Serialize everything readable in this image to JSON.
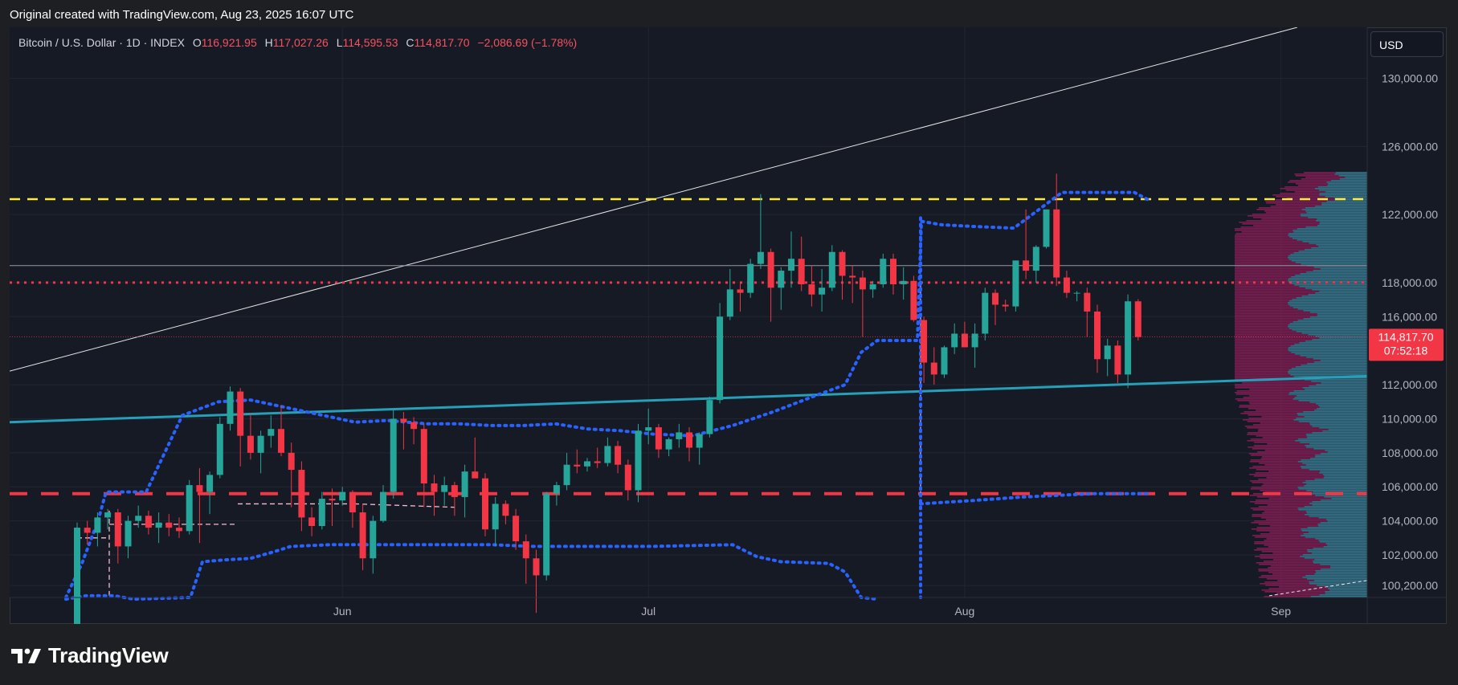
{
  "caption": "Original created with TradingView.com, Aug 23, 2025 16:07 UTC",
  "legend": {
    "symbol": "Bitcoin / U.S. Dollar · 1D · INDEX",
    "o_label": "O",
    "o_value": "116,921.95",
    "h_label": "H",
    "h_value": "117,027.26",
    "l_label": "L",
    "l_value": "114,595.53",
    "c_label": "C",
    "c_value": "114,817.70",
    "change": "−2,086.69 (−1.78%)"
  },
  "currency": "USD",
  "brand": "TradingView",
  "brand_icon": "tradingview-logo-icon",
  "colors": {
    "up": "#26a69a",
    "down": "#f23645",
    "background": "#161a25",
    "grid": "#222633",
    "trendline": "#26a0b8",
    "dotted_blue": "#2962ff",
    "yellow": "#ffeb3b",
    "red_level": "#f23645"
  },
  "price_tag": {
    "price": "114,817.70",
    "countdown": "07:52:18"
  },
  "chart_data": {
    "type": "candlestick",
    "title": "Bitcoin / U.S. Dollar · 1D · INDEX",
    "x_ticks": [
      "Jun",
      "Jul",
      "Aug",
      "Sep"
    ],
    "x_tick_dates": [
      "2025-06-01",
      "2025-07-01",
      "2025-08-01",
      "2025-09-01"
    ],
    "y_ticks": [
      "100,200.00",
      "102,000.00",
      "104,000.00",
      "106,000.00",
      "108,000.00",
      "110,000.00",
      "112,000.00",
      "116,000.00",
      "118,000.00",
      "122,000.00",
      "126,000.00",
      "130,000.00"
    ],
    "y_tick_values": [
      100200,
      102000,
      104000,
      106000,
      108000,
      110000,
      112000,
      116000,
      118000,
      122000,
      126000,
      130000
    ],
    "series": [
      {
        "name": "Bitcoin / U.S. Dollar",
        "start_date": "2025-05-06",
        "ohlc": [
          [
            94700,
            103900,
            94400,
            103600
          ],
          [
            103600,
            104000,
            102600,
            103300
          ],
          [
            103300,
            104500,
            102500,
            104200
          ],
          [
            104200,
            104700,
            103500,
            104500
          ],
          [
            104500,
            104700,
            101500,
            102500
          ],
          [
            102500,
            104300,
            101800,
            104000
          ],
          [
            104000,
            104900,
            103600,
            104300
          ],
          [
            104300,
            104600,
            103200,
            103600
          ],
          [
            103600,
            104500,
            102700,
            103900
          ],
          [
            103900,
            104400,
            103100,
            103600
          ],
          [
            103600,
            104200,
            103000,
            103400
          ],
          [
            103400,
            106400,
            103200,
            106100
          ],
          [
            106100,
            107100,
            102700,
            105700
          ],
          [
            105700,
            106900,
            104400,
            106700
          ],
          [
            106700,
            110100,
            106500,
            109700
          ],
          [
            109700,
            111900,
            109300,
            111600
          ],
          [
            111600,
            111800,
            107200,
            109000
          ],
          [
            109000,
            110300,
            107600,
            108000
          ],
          [
            108000,
            109300,
            106800,
            109000
          ],
          [
            109000,
            110200,
            108300,
            109400
          ],
          [
            109400,
            110800,
            107800,
            108000
          ],
          [
            108000,
            108600,
            104800,
            107000
          ],
          [
            107000,
            107500,
            103400,
            104200
          ],
          [
            104200,
            104800,
            103100,
            103700
          ],
          [
            103700,
            105700,
            103500,
            105300
          ],
          [
            105300,
            105900,
            103700,
            105200
          ],
          [
            105200,
            106000,
            104900,
            105700
          ],
          [
            105700,
            105800,
            103600,
            104500
          ],
          [
            104500,
            105000,
            101100,
            101800
          ],
          [
            101800,
            104300,
            100900,
            104000
          ],
          [
            104000,
            106100,
            103900,
            105700
          ],
          [
            105700,
            110500,
            105300,
            110000
          ],
          [
            110000,
            110400,
            108200,
            109800
          ],
          [
            109800,
            110100,
            108500,
            109400
          ],
          [
            109400,
            109700,
            104800,
            106200
          ],
          [
            106200,
            106700,
            104300,
            105700
          ],
          [
            105700,
            106600,
            104900,
            106100
          ],
          [
            106100,
            106300,
            104300,
            105400
          ],
          [
            105400,
            107300,
            104200,
            106900
          ],
          [
            106900,
            108900,
            106700,
            106500
          ],
          [
            106500,
            106800,
            103100,
            103500
          ],
          [
            103500,
            105400,
            102500,
            105000
          ],
          [
            105000,
            105200,
            103800,
            104300
          ],
          [
            104300,
            104700,
            102300,
            102800
          ],
          [
            102800,
            103200,
            100300,
            101800
          ],
          [
            101800,
            102300,
            98600,
            100800
          ],
          [
            100800,
            105700,
            100500,
            105600
          ],
          [
            105600,
            106300,
            104900,
            106100
          ],
          [
            106100,
            108000,
            105800,
            107300
          ],
          [
            107300,
            108200,
            106800,
            107200
          ],
          [
            107200,
            107700,
            106900,
            107500
          ],
          [
            107500,
            108300,
            107100,
            107400
          ],
          [
            107400,
            108900,
            107200,
            108400
          ],
          [
            108400,
            108700,
            106800,
            107300
          ],
          [
            107300,
            107600,
            105200,
            105800
          ],
          [
            105800,
            109700,
            105100,
            109300
          ],
          [
            109300,
            110600,
            108500,
            109500
          ],
          [
            109500,
            109700,
            107700,
            108200
          ],
          [
            108200,
            108900,
            107800,
            108800
          ],
          [
            108800,
            109700,
            108300,
            109200
          ],
          [
            109200,
            109500,
            107500,
            108300
          ],
          [
            108300,
            109200,
            107300,
            109100
          ],
          [
            109100,
            111300,
            108900,
            111100
          ],
          [
            111100,
            116800,
            110900,
            116000
          ],
          [
            116000,
            118800,
            115800,
            117600
          ],
          [
            117600,
            118000,
            116300,
            117400
          ],
          [
            117400,
            119400,
            117100,
            119100
          ],
          [
            119100,
            123200,
            118800,
            119800
          ],
          [
            119800,
            120000,
            115700,
            117700
          ],
          [
            117700,
            118900,
            116400,
            118700
          ],
          [
            118700,
            121000,
            117700,
            119400
          ],
          [
            119400,
            120700,
            117500,
            117900
          ],
          [
            117900,
            119000,
            116600,
            117300
          ],
          [
            117300,
            118800,
            116300,
            117700
          ],
          [
            117700,
            120200,
            117500,
            119800
          ],
          [
            119800,
            119900,
            117000,
            118400
          ],
          [
            118400,
            119000,
            116800,
            118300
          ],
          [
            118300,
            118700,
            114800,
            117600
          ],
          [
            117600,
            118100,
            117100,
            117900
          ],
          [
            117900,
            119700,
            117700,
            119400
          ],
          [
            119400,
            119700,
            117300,
            117900
          ],
          [
            117900,
            118900,
            117000,
            118100
          ],
          [
            118100,
            118400,
            115700,
            115800
          ],
          [
            115800,
            116000,
            112100,
            113300
          ],
          [
            113300,
            114200,
            112000,
            112600
          ],
          [
            112600,
            114300,
            112400,
            114200
          ],
          [
            114200,
            115600,
            113800,
            115000
          ],
          [
            115000,
            115700,
            114300,
            114200
          ],
          [
            114200,
            115600,
            113000,
            115000
          ],
          [
            115000,
            117700,
            114600,
            117400
          ],
          [
            117400,
            117600,
            115500,
            116700
          ],
          [
            116700,
            117000,
            116300,
            116600
          ],
          [
            116600,
            119300,
            116300,
            119300
          ],
          [
            119300,
            122300,
            118200,
            118700
          ],
          [
            118700,
            120200,
            118000,
            120100
          ],
          [
            120100,
            122300,
            120000,
            122300
          ],
          [
            122300,
            124400,
            117800,
            118300
          ],
          [
            118300,
            118700,
            117100,
            117400
          ],
          [
            117400,
            117500,
            116900,
            117400
          ],
          [
            117400,
            117700,
            114800,
            116300
          ],
          [
            116300,
            116700,
            112700,
            113500
          ],
          [
            113500,
            114700,
            112500,
            114300
          ],
          [
            114300,
            114600,
            112100,
            112600
          ],
          [
            112600,
            117300,
            111800,
            116900
          ],
          [
            116900,
            117030,
            114600,
            114800
          ]
        ]
      }
    ],
    "horizontal_levels": [
      {
        "name": "yellow dashed level",
        "value": 122900
      },
      {
        "name": "red dotted level",
        "value": 118000
      },
      {
        "name": "red dashed level",
        "value": 105600
      },
      {
        "name": "white level",
        "value": 119000
      }
    ],
    "volume_profile": true,
    "ylim": [
      99500,
      133000
    ],
    "grid": true,
    "legend_position": "top-left"
  }
}
